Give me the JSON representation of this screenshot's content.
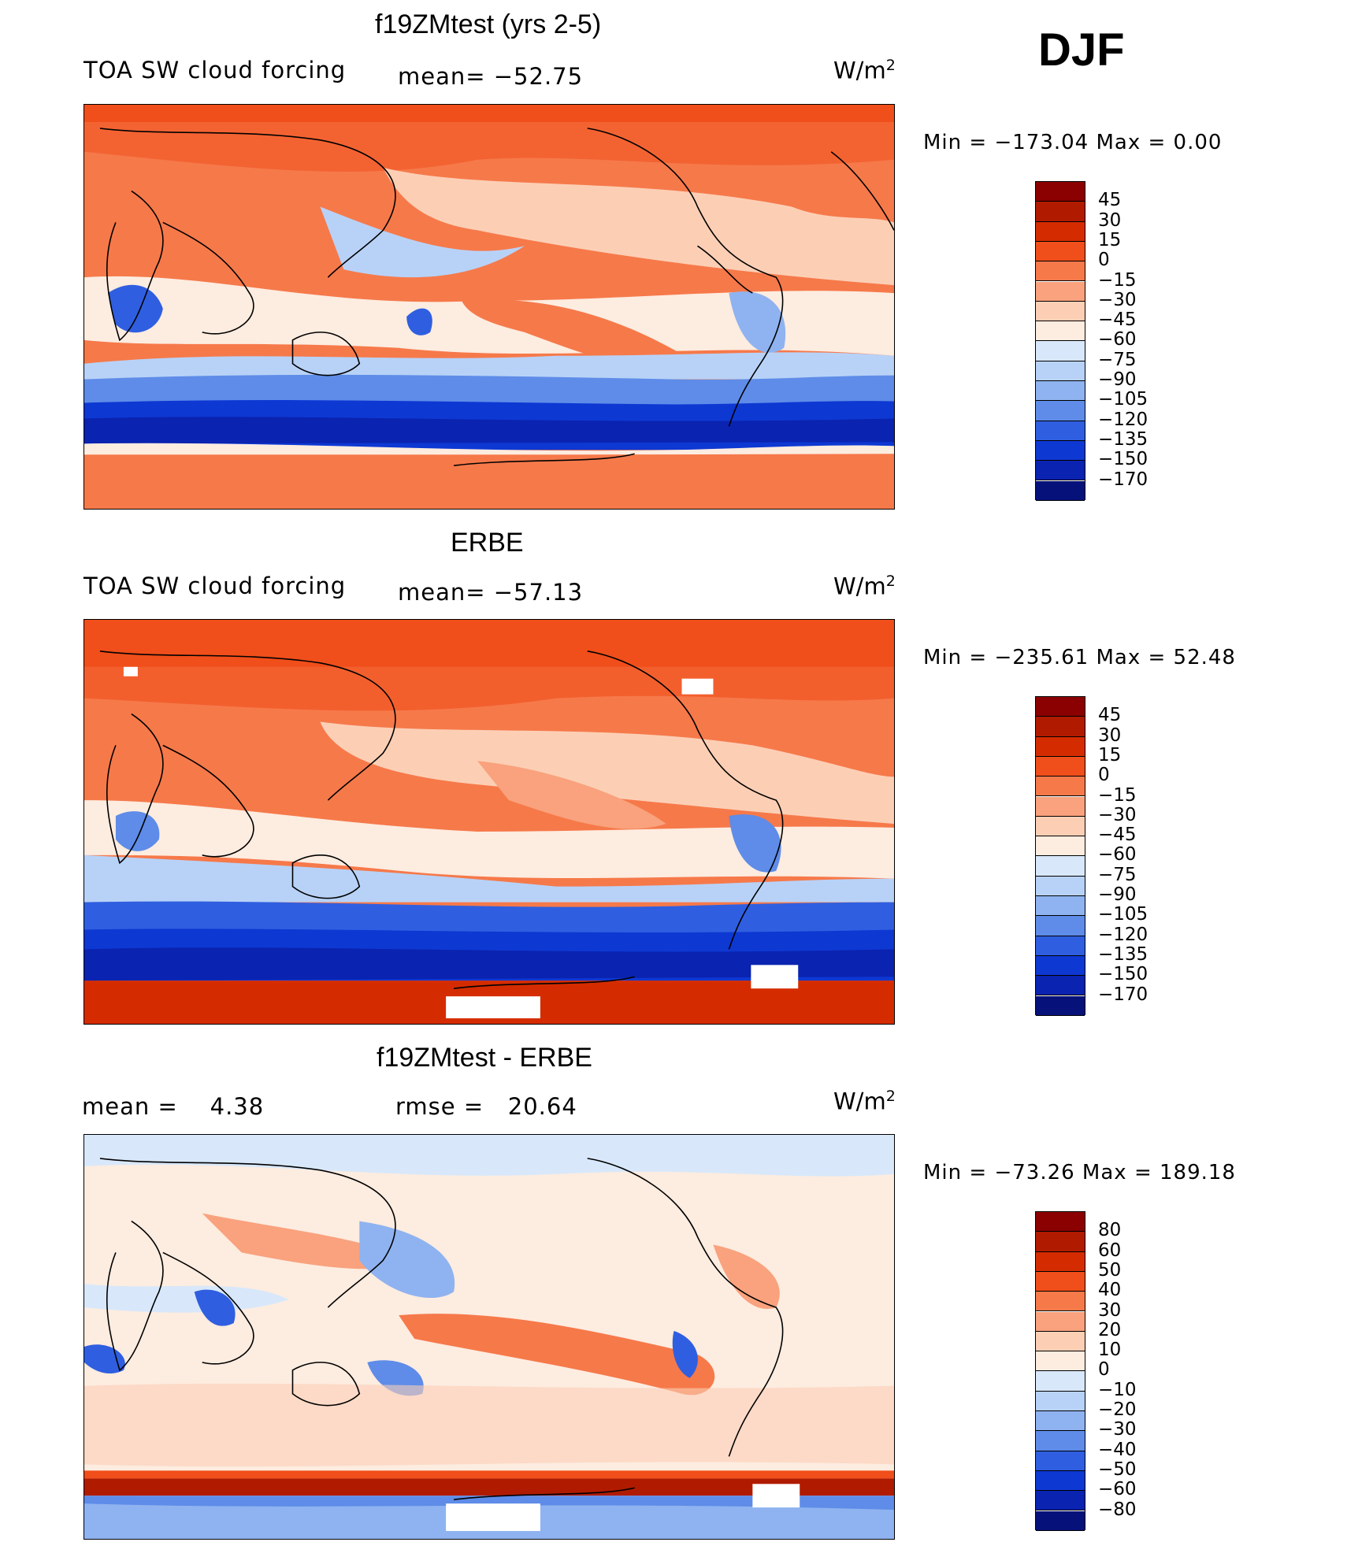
{
  "season": "DJF",
  "panels": [
    {
      "id": "model",
      "title": "f19ZMtest (yrs 2-5)",
      "left_text": "TOA SW cloud forcing",
      "center_text": "mean= −52.75",
      "units": "W/m",
      "units_exp": "2",
      "minmax": "Min = −173.04 Max =   0.00",
      "levels": [
        "45",
        "30",
        "15",
        "0",
        "−15",
        "−30",
        "−45",
        "−60",
        "−75",
        "−90",
        "−105",
        "−120",
        "−135",
        "−150",
        "−170"
      ],
      "colors": [
        "#8b0000",
        "#b01b00",
        "#d42c00",
        "#f04e1a",
        "#f6794a",
        "#f9a27d",
        "#fccfb5",
        "#fdece0",
        "#d8e8fa",
        "#b8d2f7",
        "#8fb3f0",
        "#5e8ce8",
        "#2f5fe0",
        "#0e38d2",
        "#0a23b0",
        "#06127a"
      ]
    },
    {
      "id": "obs",
      "title": "ERBE",
      "left_text": "TOA SW cloud forcing",
      "center_text": "mean= −57.13",
      "units": "W/m",
      "units_exp": "2",
      "minmax": "Min = −235.61 Max =  52.48",
      "levels": [
        "45",
        "30",
        "15",
        "0",
        "−15",
        "−30",
        "−45",
        "−60",
        "−75",
        "−90",
        "−105",
        "−120",
        "−135",
        "−150",
        "−170"
      ],
      "colors": [
        "#8b0000",
        "#b01b00",
        "#d42c00",
        "#f04e1a",
        "#f6794a",
        "#f9a27d",
        "#fccfb5",
        "#fdece0",
        "#d8e8fa",
        "#b8d2f7",
        "#8fb3f0",
        "#5e8ce8",
        "#2f5fe0",
        "#0e38d2",
        "#0a23b0",
        "#06127a"
      ]
    },
    {
      "id": "diff",
      "title": "f19ZMtest - ERBE",
      "left_text": "mean =    4.38",
      "center_text": "rmse =   20.64",
      "units": "W/m",
      "units_exp": "2",
      "minmax": "Min = −73.26 Max = 189.18",
      "levels": [
        "80",
        "60",
        "50",
        "40",
        "30",
        "20",
        "10",
        "0",
        "−10",
        "−20",
        "−30",
        "−40",
        "−50",
        "−60",
        "−80"
      ],
      "colors": [
        "#8b0000",
        "#b01b00",
        "#d42c00",
        "#f04e1a",
        "#f6794a",
        "#f9a27d",
        "#fccfb5",
        "#fdece0",
        "#d8e8fa",
        "#b8d2f7",
        "#8fb3f0",
        "#5e8ce8",
        "#2f5fe0",
        "#0e38d2",
        "#0a23b0",
        "#06127a"
      ]
    }
  ]
}
